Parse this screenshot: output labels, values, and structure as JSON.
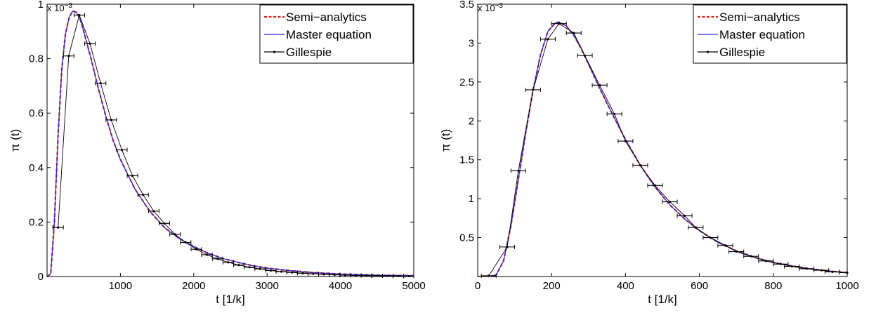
{
  "chart_data": [
    {
      "type": "line",
      "title": "",
      "xlabel": "t [1/k]",
      "ylabel": "π (t)",
      "y_exponent_label": "x 10",
      "y_exponent_power": "−3",
      "xlim": [
        0,
        5000
      ],
      "ylim": [
        0,
        1.0
      ],
      "xticks": [
        1000,
        2000,
        3000,
        4000,
        5000
      ],
      "xtick_labels": [
        "1000",
        "2000",
        "3000",
        "4000",
        "5000"
      ],
      "yticks": [
        0,
        0.2,
        0.4,
        0.6,
        0.8,
        1.0
      ],
      "ytick_labels": [
        "0",
        "0.2",
        "0.4",
        "0.6",
        "0.8",
        "1"
      ],
      "grid": false,
      "legend_position": "top-right",
      "series": [
        {
          "name": "Semi−analytics",
          "style": "dashed",
          "color": "#e8211f",
          "x": [
            0,
            50,
            100,
            150,
            200,
            250,
            300,
            350,
            400,
            450,
            500,
            600,
            700,
            800,
            900,
            1000,
            1200,
            1400,
            1600,
            1800,
            2000,
            2200,
            2400,
            2600,
            2800,
            3000,
            3300,
            3600,
            4000,
            4500,
            5000
          ],
          "values": [
            0,
            0.01,
            0.2,
            0.52,
            0.76,
            0.89,
            0.95,
            0.975,
            0.97,
            0.945,
            0.9,
            0.8,
            0.69,
            0.59,
            0.5,
            0.43,
            0.32,
            0.24,
            0.18,
            0.14,
            0.11,
            0.085,
            0.066,
            0.052,
            0.04,
            0.031,
            0.022,
            0.015,
            0.009,
            0.005,
            0.003
          ]
        },
        {
          "name": "Master equation",
          "style": "solid",
          "color": "#2a2ad8",
          "x": [
            0,
            50,
            100,
            150,
            200,
            250,
            300,
            350,
            400,
            450,
            500,
            600,
            700,
            800,
            900,
            1000,
            1200,
            1400,
            1600,
            1800,
            2000,
            2200,
            2400,
            2600,
            2800,
            3000,
            3300,
            3600,
            4000,
            4500,
            5000
          ],
          "values": [
            0,
            0.01,
            0.2,
            0.52,
            0.76,
            0.89,
            0.95,
            0.975,
            0.97,
            0.945,
            0.9,
            0.8,
            0.69,
            0.59,
            0.5,
            0.43,
            0.32,
            0.24,
            0.18,
            0.14,
            0.11,
            0.085,
            0.066,
            0.052,
            0.04,
            0.031,
            0.022,
            0.015,
            0.009,
            0.005,
            0.003
          ]
        },
        {
          "name": "Gillespie",
          "style": "errorbar",
          "color": "#000000",
          "x": [
            150,
            295,
            440,
            585,
            730,
            875,
            1020,
            1165,
            1310,
            1455,
            1600,
            1745,
            1890,
            2035,
            2180,
            2325,
            2470,
            2615,
            2760,
            2905,
            3050,
            3195,
            3340,
            3485,
            3630,
            3775,
            3920,
            4065,
            4210,
            4355,
            4500,
            4645,
            4790,
            4935
          ],
          "values": [
            0.18,
            0.81,
            0.96,
            0.855,
            0.71,
            0.575,
            0.465,
            0.37,
            0.3,
            0.24,
            0.195,
            0.155,
            0.125,
            0.1,
            0.08,
            0.065,
            0.052,
            0.042,
            0.034,
            0.028,
            0.022,
            0.018,
            0.015,
            0.012,
            0.01,
            0.008,
            0.0065,
            0.005,
            0.004,
            0.0033,
            0.0027,
            0.0022,
            0.0018,
            0.0015
          ],
          "x_error": 72
        }
      ]
    },
    {
      "type": "line",
      "title": "",
      "xlabel": "t [1/k]",
      "ylabel": "π (t)",
      "y_exponent_label": "x 10",
      "y_exponent_power": "−3",
      "xlim": [
        0,
        1000
      ],
      "ylim": [
        0,
        3.5
      ],
      "xticks": [
        0,
        200,
        400,
        600,
        800,
        1000
      ],
      "xtick_labels": [
        "0",
        "200",
        "400",
        "600",
        "800",
        "1000"
      ],
      "yticks": [
        0.5,
        1,
        1.5,
        2,
        2.5,
        3,
        3.5
      ],
      "ytick_labels": [
        "0.5",
        "1",
        "1.5",
        "2",
        "2.5",
        "3",
        "3.5"
      ],
      "grid": false,
      "legend_position": "top-right",
      "series": [
        {
          "name": "Semi−analytics",
          "style": "dashed",
          "color": "#e8211f",
          "x": [
            0,
            30,
            50,
            70,
            90,
            110,
            130,
            150,
            170,
            190,
            210,
            220,
            240,
            260,
            280,
            300,
            330,
            360,
            400,
            440,
            480,
            520,
            560,
            600,
            650,
            700,
            750,
            800,
            850,
            900,
            950,
            1000
          ],
          "values": [
            0,
            0,
            0.02,
            0.2,
            0.65,
            1.25,
            1.85,
            2.4,
            2.85,
            3.15,
            3.26,
            3.27,
            3.22,
            3.1,
            2.93,
            2.73,
            2.42,
            2.13,
            1.76,
            1.43,
            1.15,
            0.92,
            0.74,
            0.59,
            0.44,
            0.33,
            0.245,
            0.18,
            0.135,
            0.1,
            0.07,
            0.05
          ]
        },
        {
          "name": "Master equation",
          "style": "solid",
          "color": "#2a2ad8",
          "x": [
            0,
            30,
            50,
            70,
            90,
            110,
            130,
            150,
            170,
            190,
            210,
            220,
            240,
            260,
            280,
            300,
            330,
            360,
            400,
            440,
            480,
            520,
            560,
            600,
            650,
            700,
            750,
            800,
            850,
            900,
            950,
            1000
          ],
          "values": [
            0,
            0,
            0.02,
            0.2,
            0.65,
            1.25,
            1.85,
            2.4,
            2.85,
            3.15,
            3.26,
            3.27,
            3.22,
            3.1,
            2.93,
            2.73,
            2.42,
            2.13,
            1.76,
            1.43,
            1.15,
            0.92,
            0.74,
            0.59,
            0.44,
            0.33,
            0.245,
            0.18,
            0.135,
            0.1,
            0.07,
            0.05
          ]
        },
        {
          "name": "Gillespie",
          "style": "errorbar",
          "color": "#000000",
          "x": [
            30,
            80,
            110,
            150,
            190,
            220,
            260,
            290,
            330,
            370,
            400,
            440,
            480,
            520,
            560,
            590,
            630,
            670,
            700,
            740,
            780,
            820,
            850,
            890,
            930,
            960,
            1000
          ],
          "values": [
            0.01,
            0.38,
            1.36,
            2.4,
            3.05,
            3.25,
            3.13,
            2.84,
            2.46,
            2.09,
            1.74,
            1.43,
            1.17,
            0.96,
            0.78,
            0.63,
            0.5,
            0.4,
            0.32,
            0.26,
            0.2,
            0.16,
            0.13,
            0.1,
            0.08,
            0.06,
            0.05
          ],
          "x_error": 20
        }
      ]
    }
  ]
}
